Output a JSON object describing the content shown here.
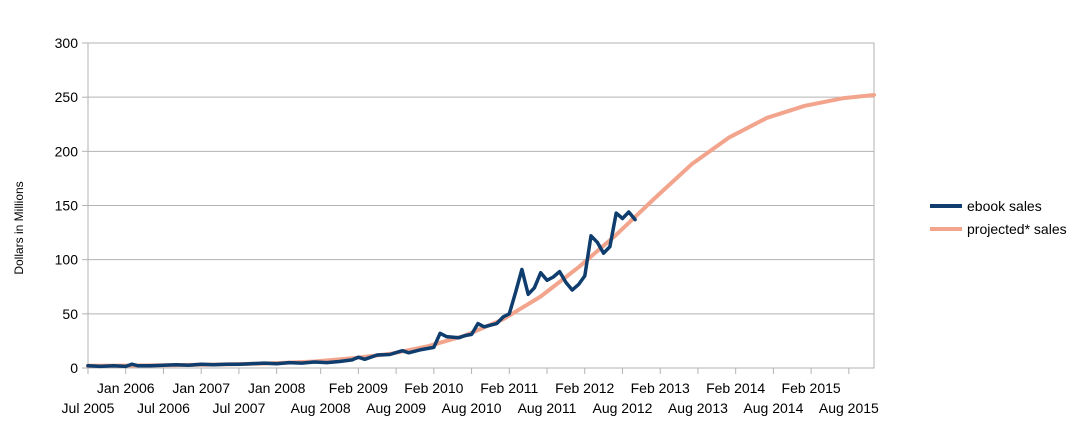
{
  "chart_data": {
    "type": "line",
    "title": "",
    "xlabel": "",
    "ylabel": "Dollars in Millions",
    "ylim": [
      0,
      300
    ],
    "y_ticks": [
      0,
      50,
      100,
      150,
      200,
      250,
      300
    ],
    "grid": "horizontal",
    "legend_position": "right",
    "x_tick_labels_upper": [
      "Jan 2006",
      "Jan 2007",
      "Jan 2008",
      "Feb 2009",
      "Feb 2010",
      "Feb 2011",
      "Feb 2012",
      "Feb 2013",
      "Feb 2014",
      "Feb 2015"
    ],
    "x_tick_labels_lower": [
      "Jul 2005",
      "Jul 2006",
      "Jul 2007",
      "Aug 2008",
      "Aug 2009",
      "Aug 2010",
      "Aug 2011",
      "Aug 2012",
      "Aug 2013",
      "Aug 2014",
      "Aug 2015"
    ],
    "series": [
      {
        "name": "ebook sales",
        "color": "#0e3d6e",
        "points": [
          [
            "2005-07",
            2
          ],
          [
            "2005-09",
            1.5
          ],
          [
            "2005-11",
            2
          ],
          [
            "2006-01",
            1.5
          ],
          [
            "2006-02",
            3.5
          ],
          [
            "2006-03",
            2
          ],
          [
            "2006-05",
            2
          ],
          [
            "2006-07",
            2.5
          ],
          [
            "2006-09",
            3
          ],
          [
            "2006-11",
            2.5
          ],
          [
            "2007-01",
            3.5
          ],
          [
            "2007-03",
            3
          ],
          [
            "2007-05",
            3.5
          ],
          [
            "2007-07",
            3.5
          ],
          [
            "2007-09",
            4
          ],
          [
            "2007-11",
            4.5
          ],
          [
            "2008-01",
            4
          ],
          [
            "2008-03",
            5
          ],
          [
            "2008-05",
            4.5
          ],
          [
            "2008-07",
            5.5
          ],
          [
            "2008-09",
            5
          ],
          [
            "2008-11",
            6
          ],
          [
            "2009-01",
            7.5
          ],
          [
            "2009-02",
            10
          ],
          [
            "2009-03",
            8
          ],
          [
            "2009-05",
            12
          ],
          [
            "2009-07",
            12.5
          ],
          [
            "2009-09",
            16
          ],
          [
            "2009-10",
            14
          ],
          [
            "2009-12",
            17
          ],
          [
            "2010-02",
            19
          ],
          [
            "2010-03",
            32
          ],
          [
            "2010-04",
            29
          ],
          [
            "2010-06",
            28
          ],
          [
            "2010-07",
            30
          ],
          [
            "2010-08",
            31
          ],
          [
            "2010-09",
            41
          ],
          [
            "2010-10",
            38
          ],
          [
            "2010-12",
            41
          ],
          [
            "2011-01",
            47
          ],
          [
            "2011-02",
            50
          ],
          [
            "2011-03",
            70
          ],
          [
            "2011-04",
            91
          ],
          [
            "2011-05",
            68
          ],
          [
            "2011-06",
            74
          ],
          [
            "2011-07",
            88
          ],
          [
            "2011-08",
            81
          ],
          [
            "2011-09",
            84
          ],
          [
            "2011-10",
            89
          ],
          [
            "2011-11",
            79
          ],
          [
            "2011-12",
            72
          ],
          [
            "2012-01",
            77
          ],
          [
            "2012-02",
            85
          ],
          [
            "2012-03",
            122
          ],
          [
            "2012-04",
            116
          ],
          [
            "2012-05",
            106
          ],
          [
            "2012-06",
            112
          ],
          [
            "2012-07",
            143
          ],
          [
            "2012-08",
            138
          ],
          [
            "2012-09",
            144
          ],
          [
            "2012-10",
            137
          ]
        ]
      },
      {
        "name": "projected* sales",
        "color": "#f2a58c",
        "points": [
          [
            "2005-07",
            2
          ],
          [
            "2006-01",
            2.2
          ],
          [
            "2006-07",
            2.5
          ],
          [
            "2007-01",
            3
          ],
          [
            "2007-07",
            3.6
          ],
          [
            "2008-01",
            4.5
          ],
          [
            "2008-07",
            6
          ],
          [
            "2009-01",
            9
          ],
          [
            "2009-07",
            13
          ],
          [
            "2010-01",
            20
          ],
          [
            "2010-07",
            30
          ],
          [
            "2011-01",
            45
          ],
          [
            "2011-07",
            66
          ],
          [
            "2012-01",
            93
          ],
          [
            "2012-07",
            123
          ],
          [
            "2013-01",
            156
          ],
          [
            "2013-07",
            188
          ],
          [
            "2014-01",
            213
          ],
          [
            "2014-07",
            231
          ],
          [
            "2015-01",
            242
          ],
          [
            "2015-07",
            249
          ],
          [
            "2015-12",
            252
          ]
        ]
      }
    ]
  }
}
